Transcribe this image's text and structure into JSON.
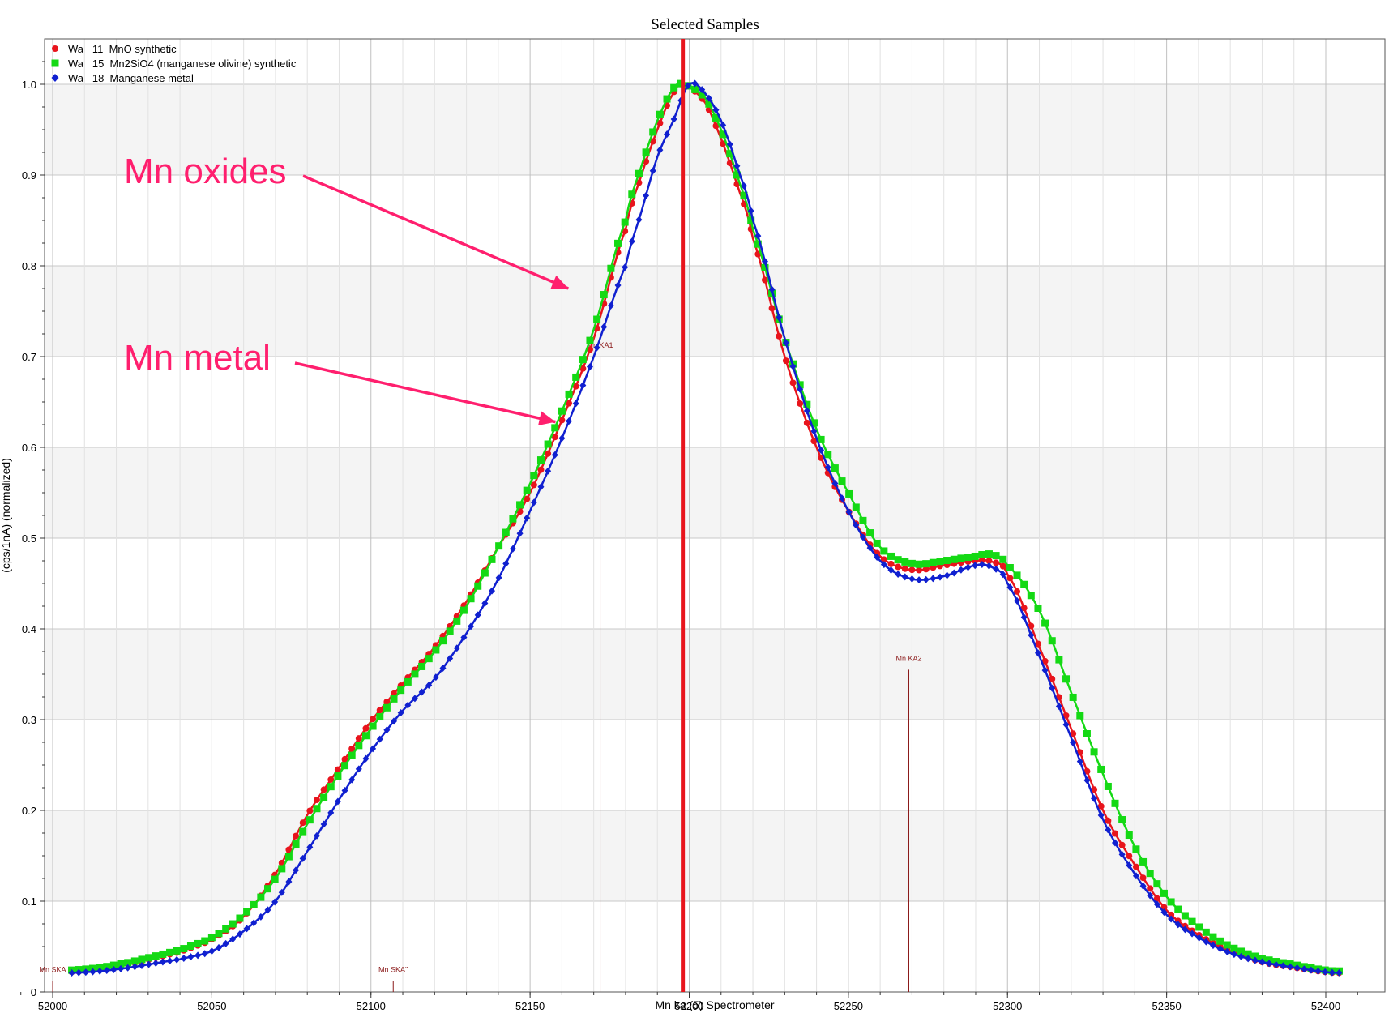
{
  "chart_data": {
    "type": "line",
    "title": "Selected Samples",
    "xlabel": "Mn ka (5) Spectrometer",
    "ylabel": "(cps/1nA) (normalized)",
    "xlim": [
      51990,
      52412
    ],
    "ylim": [
      0,
      1.05
    ],
    "xticks": [
      52000,
      52050,
      52100,
      52150,
      52200,
      52250,
      52300,
      52350,
      52400
    ],
    "xtick_labels": [
      "52000",
      "52050",
      "52100",
      "52150",
      "52200",
      "52250",
      "52300",
      "52350",
      "52400"
    ],
    "yticks": [
      0,
      0.1,
      0.2,
      0.3,
      0.4,
      0.5,
      0.6,
      0.7,
      0.8,
      0.9,
      1.0
    ],
    "ytick_labels": [
      "0",
      "0.1",
      "0.2",
      "0.3",
      "0.4",
      "0.5",
      "0.6",
      "0.7",
      "0.8",
      "0.9",
      "1.0"
    ],
    "grid": true,
    "legend_position": "top-left",
    "peak_line_x": 52198,
    "series": [
      {
        "name": "Wa   11  MnO synthetic",
        "color": "#e8141c",
        "marker": "circle",
        "x": [
          52006,
          52020,
          52040,
          52050,
          52060,
          52070,
          52080,
          52090,
          52100,
          52110,
          52120,
          52130,
          52140,
          52150,
          52160,
          52170,
          52180,
          52185,
          52190,
          52195,
          52198,
          52205,
          52210,
          52215,
          52220,
          52230,
          52240,
          52250,
          52260,
          52270,
          52280,
          52290,
          52295,
          52300,
          52310,
          52320,
          52330,
          52340,
          52350,
          52360,
          52370,
          52380,
          52390,
          52400,
          52405
        ],
        "y": [
          0.022,
          0.028,
          0.044,
          0.058,
          0.083,
          0.13,
          0.195,
          0.247,
          0.298,
          0.34,
          0.38,
          0.43,
          0.49,
          0.55,
          0.63,
          0.72,
          0.84,
          0.9,
          0.95,
          0.99,
          1.0,
          0.98,
          0.94,
          0.89,
          0.83,
          0.7,
          0.6,
          0.53,
          0.48,
          0.465,
          0.47,
          0.475,
          0.474,
          0.46,
          0.38,
          0.29,
          0.2,
          0.14,
          0.09,
          0.063,
          0.045,
          0.033,
          0.027,
          0.022,
          0.021
        ]
      },
      {
        "name": "Wa   15  Mn2SiO4 (manganese olivine) synthetic",
        "color": "#14d914",
        "marker": "square",
        "x": [
          52006,
          52020,
          52040,
          52050,
          52060,
          52070,
          52080,
          52090,
          52100,
          52110,
          52120,
          52130,
          52140,
          52150,
          52160,
          52170,
          52180,
          52185,
          52190,
          52195,
          52198,
          52205,
          52210,
          52215,
          52220,
          52230,
          52240,
          52250,
          52260,
          52270,
          52280,
          52290,
          52295,
          52300,
          52310,
          52320,
          52330,
          52340,
          52350,
          52360,
          52370,
          52380,
          52390,
          52400,
          52405
        ],
        "y": [
          0.024,
          0.03,
          0.046,
          0.06,
          0.085,
          0.125,
          0.185,
          0.24,
          0.29,
          0.335,
          0.375,
          0.425,
          0.49,
          0.56,
          0.64,
          0.73,
          0.85,
          0.91,
          0.96,
          0.995,
          1.0,
          0.985,
          0.95,
          0.9,
          0.84,
          0.72,
          0.62,
          0.55,
          0.49,
          0.472,
          0.475,
          0.48,
          0.482,
          0.47,
          0.42,
          0.33,
          0.24,
          0.16,
          0.105,
          0.072,
          0.05,
          0.037,
          0.03,
          0.024,
          0.023
        ]
      },
      {
        "name": "Wa   18  Manganese metal",
        "color": "#1020d0",
        "marker": "diamond",
        "x": [
          52006,
          52020,
          52040,
          52050,
          52060,
          52070,
          52080,
          52090,
          52100,
          52110,
          52120,
          52130,
          52140,
          52150,
          52160,
          52170,
          52180,
          52185,
          52190,
          52195,
          52200,
          52205,
          52210,
          52215,
          52220,
          52230,
          52240,
          52250,
          52260,
          52270,
          52280,
          52290,
          52295,
          52300,
          52310,
          52320,
          52330,
          52340,
          52350,
          52360,
          52370,
          52380,
          52390,
          52400,
          52405
        ],
        "y": [
          0.021,
          0.025,
          0.036,
          0.045,
          0.067,
          0.1,
          0.155,
          0.212,
          0.265,
          0.31,
          0.345,
          0.395,
          0.455,
          0.53,
          0.61,
          0.7,
          0.8,
          0.86,
          0.92,
          0.96,
          1.0,
          0.99,
          0.96,
          0.91,
          0.85,
          0.72,
          0.61,
          0.53,
          0.475,
          0.455,
          0.458,
          0.47,
          0.468,
          0.45,
          0.37,
          0.28,
          0.19,
          0.13,
          0.085,
          0.06,
          0.043,
          0.033,
          0.027,
          0.022,
          0.021
        ]
      }
    ],
    "line_markers": [
      {
        "label": "Mn KA1",
        "x": 52172,
        "height": 0.7
      },
      {
        "label": "Mn KA2",
        "x": 52269,
        "height": 0.355
      },
      {
        "label": "Mn SKA",
        "x": 52000,
        "height": 0.012
      },
      {
        "label": "Mn SKA''",
        "x": 52107,
        "height": 0.012
      }
    ],
    "annotations": [
      {
        "text": "Mn oxides",
        "arrow_to_x": 52162,
        "arrow_to_y": 0.775
      },
      {
        "text": "Mn metal",
        "arrow_to_x": 52158,
        "arrow_to_y": 0.628
      }
    ]
  }
}
